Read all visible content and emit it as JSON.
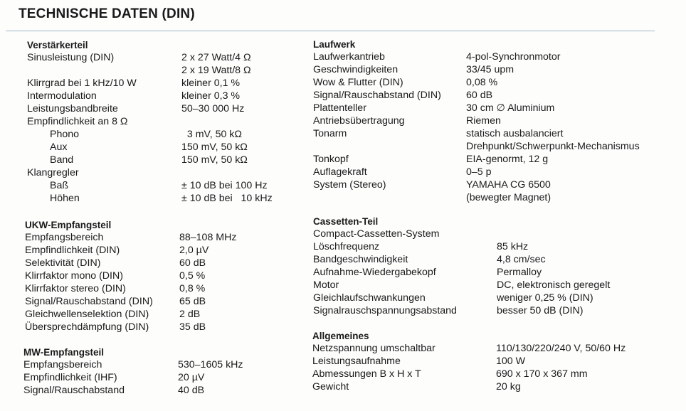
{
  "title": "TECHNISCHE DATEN (DIN)",
  "sections": [
    {
      "heading": "Verstärkerteil",
      "rows": [
        {
          "label": "Sinusleistung (DIN)",
          "value": "2 x 27 Watt/4 Ω"
        },
        {
          "label": "",
          "value": "2 x 19 Watt/8 Ω"
        },
        {
          "label": "Klirrgrad bei 1 kHz/10 W",
          "value": "kleiner 0,1 %"
        },
        {
          "label": "Intermodulation",
          "value": "kleiner 0,3 %"
        },
        {
          "label": "Leistungsbandbreite",
          "value": "50–30 000 Hz"
        },
        {
          "label": "Empfindlichkeit an 8 Ω",
          "value": ""
        },
        {
          "label": "Phono",
          "value": "  3 mV, 50 kΩ",
          "indent": true
        },
        {
          "label": "Aux",
          "value": "150 mV, 50 kΩ",
          "indent": true
        },
        {
          "label": "Band",
          "value": "150 mV, 50 kΩ",
          "indent": true
        },
        {
          "label": "Klangregler",
          "value": ""
        },
        {
          "label": "Baß",
          "value": "± 10 dB bei 100 Hz",
          "indent": true
        },
        {
          "label": "Höhen",
          "value": "± 10 dB bei   10 kHz",
          "indent": true
        }
      ]
    },
    {
      "heading": "UKW-Empfangsteil",
      "rows": [
        {
          "label": "Empfangsbereich",
          "value": "88–108 MHz"
        },
        {
          "label": "Empfindlichkeit (DIN)",
          "value": "2,0 µV"
        },
        {
          "label": "Selektivität (DIN)",
          "value": "60 dB"
        },
        {
          "label": "Klirrfaktor mono (DIN)",
          "value": "0,5 %"
        },
        {
          "label": "Klirrfaktor stereo (DIN)",
          "value": "0,8 %"
        },
        {
          "label": "Signal/Rauschabstand (DIN)",
          "value": "65 dB"
        },
        {
          "label": "Gleichwellenselektion (DIN)",
          "value": "2 dB"
        },
        {
          "label": "Übersprechdämpfung (DIN)",
          "value": "35 dB"
        }
      ]
    },
    {
      "heading": "MW-Empfangsteil",
      "rows": [
        {
          "label": "Empfangsbereich",
          "value": "530–1605 kHz"
        },
        {
          "label": "Empfindlichkeit (IHF)",
          "value": "20 µV"
        },
        {
          "label": "Signal/Rauschabstand",
          "value": "40 dB"
        }
      ]
    },
    {
      "heading": "Laufwerk",
      "rows": [
        {
          "label": "Laufwerkantrieb",
          "value": "4-pol-Synchronmotor"
        },
        {
          "label": "Geschwindigkeiten",
          "value": "33/45 upm"
        },
        {
          "label": "Wow & Flutter (DIN)",
          "value": "0,08 %"
        },
        {
          "label": "Signal/Rauschabstand (DIN)",
          "value": "60 dB"
        },
        {
          "label": "Plattenteller",
          "value": "30 cm ∅ Aluminium"
        },
        {
          "label": "Antriebsübertragung",
          "value": "Riemen"
        },
        {
          "label": "Tonarm",
          "value": "statisch ausbalanciert"
        },
        {
          "label": "",
          "value": "Drehpunkt/Schwerpunkt-Mechanismus"
        },
        {
          "label": "Tonkopf",
          "value": "EIA-genormt, 12 g"
        },
        {
          "label": "Auflagekraft",
          "value": "0–5 p"
        },
        {
          "label": "System (Stereo)",
          "value": "YAMAHA CG 6500"
        },
        {
          "label": "",
          "value": "(bewegter Magnet)"
        }
      ]
    },
    {
      "heading": "Cassetten-Teil",
      "rows": [
        {
          "label": "Compact-Cassetten-System",
          "value": ""
        },
        {
          "label": "Löschfrequenz",
          "value": "85 kHz"
        },
        {
          "label": "Bandgeschwindigkeit",
          "value": "4,8 cm/sec"
        },
        {
          "label": "Aufnahme-Wiedergabekopf",
          "value": "Permalloy"
        },
        {
          "label": "Motor",
          "value": "DC, elektronisch geregelt"
        },
        {
          "label": "Gleichlaufschwankungen",
          "value": "weniger 0,25 % (DIN)"
        },
        {
          "label": "Signalrauschspannungsabstand",
          "value": "besser 50 dB (DIN)"
        }
      ]
    },
    {
      "heading": "Allgemeines",
      "rows": [
        {
          "label": "Netzspannung umschaltbar",
          "value": "110/130/220/240 V, 50/60 Hz"
        },
        {
          "label": "Leistungsaufnahme",
          "value": "100 W"
        },
        {
          "label": "Abmessungen B x H x T",
          "value": "690 x 170 x 367 mm"
        },
        {
          "label": "Gewicht",
          "value": "20 kg"
        }
      ]
    }
  ]
}
